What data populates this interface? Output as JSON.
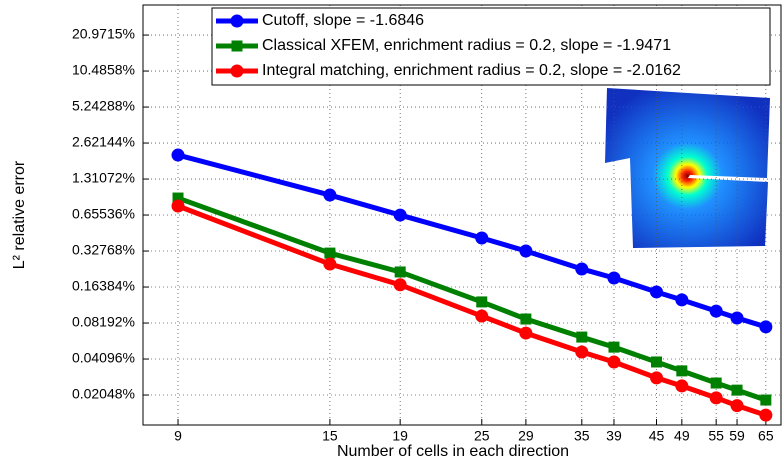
{
  "chart_data": {
    "type": "line",
    "x_label": "Number of cells in each direction",
    "y_label": "L² relative error",
    "x": [
      9,
      15,
      19,
      25,
      29,
      35,
      39,
      45,
      49,
      55,
      59,
      65
    ],
    "series": [
      {
        "name": "Cutoff, slope = -1.6846",
        "color": "#0000ff",
        "marker": "circle",
        "values": [
          2.08,
          0.963,
          0.655,
          0.421,
          0.328,
          0.232,
          0.195,
          0.149,
          0.128,
          0.103,
          0.0902,
          0.076
        ]
      },
      {
        "name": "Classical XFEM, enrichment radius = 0.2, slope = -1.9471",
        "color": "#008000",
        "marker": "square",
        "values": [
          0.909,
          0.315,
          0.219,
          0.123,
          0.0885,
          0.0625,
          0.0515,
          0.0387,
          0.0326,
          0.0258,
          0.0225,
          0.0186
        ]
      },
      {
        "name": "Integral matching, enrichment radius = 0.2, slope = -2.0162",
        "color": "#ff0000",
        "marker": "circle",
        "values": [
          0.78,
          0.255,
          0.171,
          0.0937,
          0.0675,
          0.0469,
          0.0387,
          0.0285,
          0.0244,
          0.0194,
          0.0167,
          0.0139
        ]
      }
    ],
    "xlim": [
      8,
      68.4
    ],
    "ylim": [
      0.0115,
      37.4
    ],
    "x_log": true,
    "y_log": true,
    "grid": true,
    "legend": "upper right",
    "xticks": [
      9,
      15,
      19,
      25,
      29,
      35,
      39,
      45,
      49,
      55,
      59,
      65
    ],
    "yticks": [
      {
        "value": 0.02048,
        "label": "0.02048%"
      },
      {
        "value": 0.04096,
        "label": "0.04096%"
      },
      {
        "value": 0.08192,
        "label": "0.08192%"
      },
      {
        "value": 0.16384,
        "label": "0.16384%"
      },
      {
        "value": 0.32768,
        "label": "0.32768%"
      },
      {
        "value": 0.65536,
        "label": "0.65536%"
      },
      {
        "value": 1.31072,
        "label": "1.31072%"
      },
      {
        "value": 2.62144,
        "label": "2.62144%"
      },
      {
        "value": 5.24288,
        "label": "5.24288%"
      },
      {
        "value": 10.4858,
        "label": "10.4858%"
      },
      {
        "value": 20.9715,
        "label": "20.9715%"
      }
    ]
  }
}
